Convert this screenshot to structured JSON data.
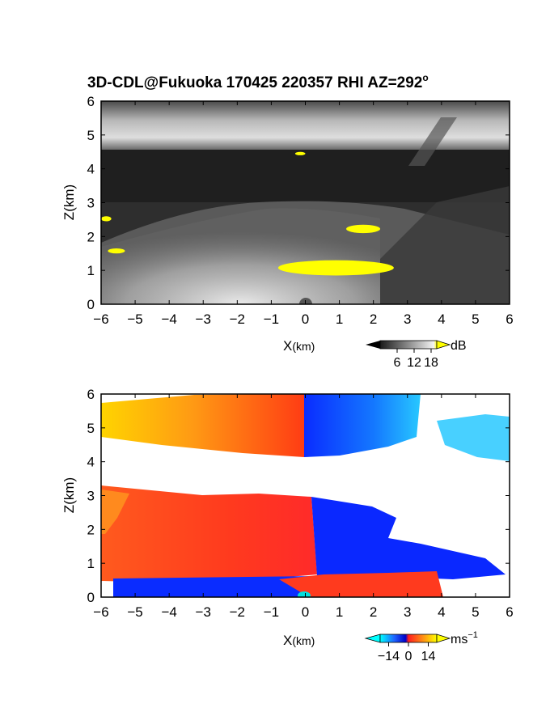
{
  "chart_data": [
    {
      "type": "heatmap",
      "title": "3D-CDL@Fukuoka 170425 220357 RHI AZ=292",
      "title_superscript": "o",
      "variable": "backscatter",
      "xlabel": "X",
      "xlabel_unit": "(km)",
      "ylabel": "Z(km)",
      "xlim": [
        -6,
        6
      ],
      "ylim": [
        0,
        6
      ],
      "xticks": [
        "-6",
        "-5",
        "-4",
        "-3",
        "-2",
        "-1",
        "0",
        "1",
        "2",
        "3",
        "4",
        "5",
        "6"
      ],
      "yticks": [
        "0",
        "1",
        "2",
        "3",
        "4",
        "5",
        "6"
      ],
      "colorbar": {
        "unit": "dB",
        "ticks": [
          "6",
          "12",
          "18"
        ],
        "range": [
          0,
          20
        ],
        "saturation_color": "#ffff00"
      },
      "features": [
        {
          "kind": "cloud-layer",
          "x": [
            -6,
            6
          ],
          "z": [
            4.6,
            6.0
          ],
          "level": 14
        },
        {
          "kind": "aerosol-dome",
          "x": [
            -6,
            3.2
          ],
          "z": [
            0,
            3.0
          ],
          "level": 12
        },
        {
          "kind": "saturated",
          "x": [
            -0.8,
            2.6
          ],
          "z": [
            0.85,
            1.3
          ]
        },
        {
          "kind": "saturated",
          "x": [
            1.2,
            2.2
          ],
          "z": [
            2.1,
            2.35
          ]
        },
        {
          "kind": "saturated",
          "x": [
            -5.8,
            -5.3
          ],
          "z": [
            1.5,
            1.65
          ]
        },
        {
          "kind": "saturated",
          "x": [
            -6.0,
            -5.7
          ],
          "z": [
            2.45,
            2.6
          ]
        },
        {
          "kind": "saturated",
          "x": [
            -0.3,
            0.0
          ],
          "z": [
            4.4,
            4.5
          ]
        }
      ]
    },
    {
      "type": "heatmap",
      "variable": "radial velocity",
      "xlabel": "X",
      "xlabel_unit": "(km)",
      "ylabel": "Z(km)",
      "xlim": [
        -6,
        6
      ],
      "ylim": [
        0,
        6
      ],
      "xticks": [
        "-6",
        "-5",
        "-4",
        "-3",
        "-2",
        "-1",
        "0",
        "1",
        "2",
        "3",
        "4",
        "5",
        "6"
      ],
      "yticks": [
        "0",
        "1",
        "2",
        "3",
        "4",
        "5",
        "6"
      ],
      "colorbar": {
        "unit": "ms",
        "unit_exponent": "−1",
        "ticks": [
          "−14",
          "0",
          "14"
        ],
        "range": [
          -20,
          20
        ]
      },
      "features": [
        {
          "kind": "velocity-layer",
          "x": [
            -6,
            0
          ],
          "z": [
            4.1,
            6.0
          ],
          "velocity": [
            18,
            4
          ]
        },
        {
          "kind": "velocity-layer",
          "x": [
            0,
            6
          ],
          "z": [
            4.1,
            6.0
          ],
          "velocity": [
            -12,
            -6
          ]
        },
        {
          "kind": "velocity-layer",
          "x": [
            -6,
            0.3
          ],
          "z": [
            0.5,
            3.0
          ],
          "velocity": [
            8,
            4
          ]
        },
        {
          "kind": "velocity-layer",
          "x": [
            0.3,
            6
          ],
          "z": [
            0.4,
            2.9
          ],
          "velocity": [
            -12,
            -10
          ]
        },
        {
          "kind": "velocity-layer",
          "x": [
            -6,
            0
          ],
          "z": [
            0,
            0.5
          ],
          "velocity": [
            -12,
            -10
          ]
        },
        {
          "kind": "velocity-layer",
          "x": [
            0,
            4
          ],
          "z": [
            0,
            0.5
          ],
          "velocity": [
            4,
            6
          ]
        }
      ]
    }
  ]
}
